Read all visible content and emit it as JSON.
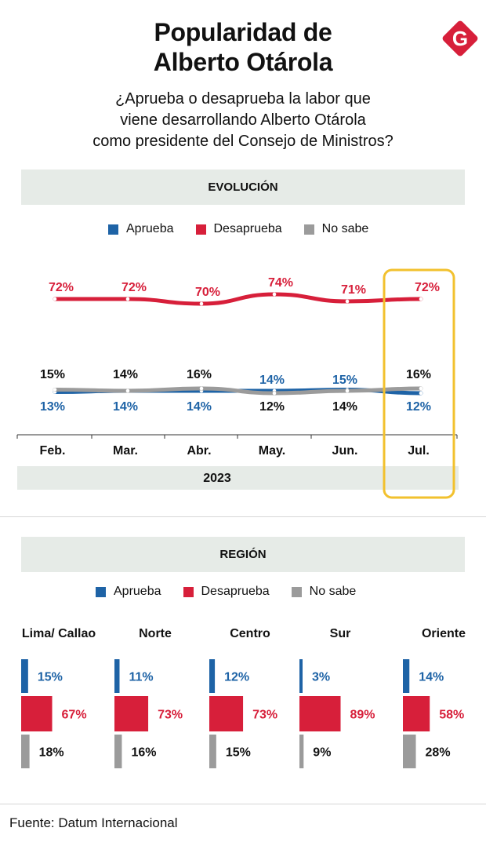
{
  "header": {
    "title_line1": "Popularidad de",
    "title_line2": "Alberto Otárola",
    "subtitle_line1": "¿Aprueba o desaprueba la labor que",
    "subtitle_line2": "viene desarrollando Alberto Otárola",
    "subtitle_line3": "como presidente del Consejo de Ministros?",
    "logo_letter": "G"
  },
  "colors": {
    "aprueba": "#1e63a6",
    "desaprueba": "#d71f3a",
    "no_sabe": "#9b9b9b",
    "highlight": "#f2c12e",
    "band": "#e6ebe7",
    "logo": "#d71f3a"
  },
  "legend": {
    "aprueba": "Aprueba",
    "desaprueba": "Desaprueba",
    "no_sabe": "No sabe"
  },
  "sections": {
    "evolucion": "EVOLUCIÓN",
    "region": "REGIÓN",
    "year": "2023"
  },
  "chart_data": [
    {
      "type": "line",
      "categories": [
        "Feb.",
        "Mar.",
        "Abr.",
        "May.",
        "Jun.",
        "Jul."
      ],
      "series": [
        {
          "name": "Desaprueba",
          "values": [
            72,
            72,
            70,
            74,
            71,
            72
          ]
        },
        {
          "name": "Aprueba",
          "values": [
            13,
            14,
            14,
            14,
            15,
            12
          ]
        },
        {
          "name": "No sabe",
          "values": [
            15,
            14,
            16,
            12,
            14,
            16
          ]
        }
      ],
      "title": "EVOLUCIÓN",
      "xlabel": "2023",
      "highlight_category": "Jul."
    },
    {
      "type": "bar",
      "categories": [
        "Lima/ Callao",
        "Norte",
        "Centro",
        "Sur",
        "Oriente"
      ],
      "series": [
        {
          "name": "Aprueba",
          "values": [
            15,
            11,
            12,
            3,
            14
          ]
        },
        {
          "name": "Desaprueba",
          "values": [
            67,
            73,
            73,
            89,
            58
          ]
        },
        {
          "name": "No sabe",
          "values": [
            18,
            16,
            15,
            9,
            28
          ]
        }
      ],
      "title": "REGIÓN"
    }
  ],
  "footer": {
    "source": "Fuente: Datum Internacional"
  }
}
